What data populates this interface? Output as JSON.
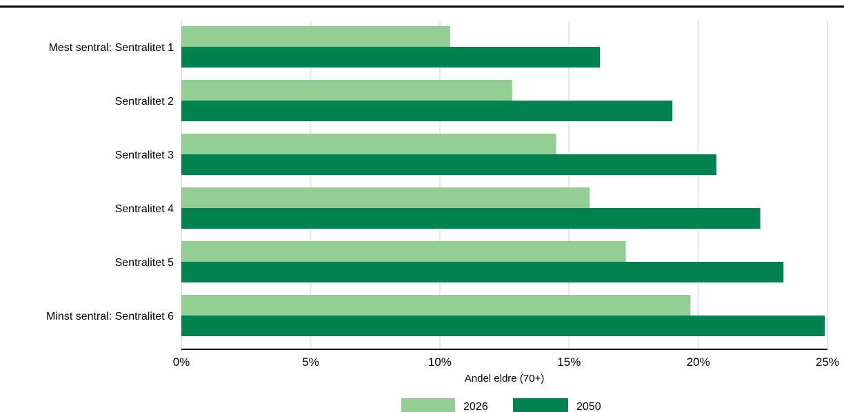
{
  "header": {
    "title": ""
  },
  "colors": {
    "series_2026": "#92cd94",
    "series_2050": "#008350",
    "grid": "#e6e6e6",
    "axis": "#000000"
  },
  "chart_data": {
    "type": "bar",
    "orientation": "horizontal",
    "title": "",
    "xlabel": "Andel eldre (70+)",
    "ylabel": "",
    "categories": [
      "Mest sentral: Sentralitet 1",
      "Sentralitet 2",
      "Sentralitet 3",
      "Sentralitet 4",
      "Sentralitet 5",
      "Minst sentral: Sentralitet 6"
    ],
    "series": [
      {
        "name": "2026",
        "values": [
          10.4,
          12.8,
          14.5,
          15.8,
          17.2,
          19.7
        ]
      },
      {
        "name": "2050",
        "values": [
          16.2,
          19.0,
          20.7,
          22.4,
          23.3,
          24.9
        ]
      }
    ],
    "xlim": [
      0,
      25
    ],
    "xticks": [
      0,
      5,
      10,
      15,
      20,
      25
    ],
    "xtick_labels": [
      "0%",
      "5%",
      "10%",
      "15%",
      "20%",
      "25%"
    ],
    "grid": true,
    "legend_position": "bottom"
  }
}
